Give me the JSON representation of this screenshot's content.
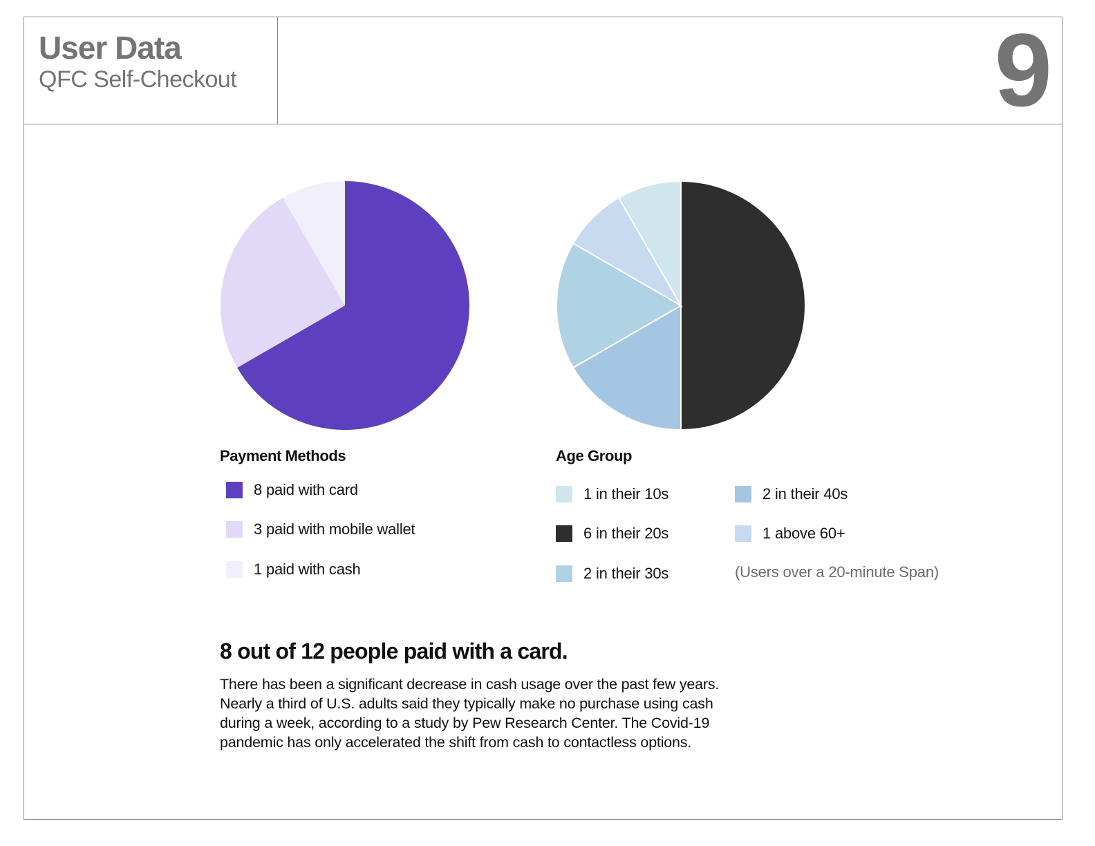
{
  "header": {
    "title": "User Data",
    "subtitle": "QFC Self-Checkout",
    "page_number": "9"
  },
  "chart_data": [
    {
      "type": "pie",
      "title": "Payment Methods",
      "categories": [
        "8 paid with card",
        "3 paid with mobile wallet",
        "1 paid with cash"
      ],
      "values": [
        8,
        3,
        1
      ],
      "colors": [
        "#5e40bf",
        "#e2d9f9",
        "#f2effd"
      ],
      "legend_position": "below"
    },
    {
      "type": "pie",
      "title": "Age Group",
      "categories": [
        "6 in their 20s",
        "2 in their 40s",
        "2 in their 30s",
        "1 above 60+",
        "1 in their 10s"
      ],
      "values": [
        6,
        2,
        2,
        1,
        1
      ],
      "colors": [
        "#2e2e2e",
        "#a5c6e3",
        "#b0d2e5",
        "#c6daf0",
        "#d0e6ef"
      ],
      "legend_position": "below",
      "note": "(Users over a 20-minute Span)"
    }
  ],
  "legends": {
    "payment": [
      {
        "label": "8 paid with card",
        "color": "#5e40bf"
      },
      {
        "label": "3 paid with mobile wallet",
        "color": "#e2d9f9"
      },
      {
        "label": "1 paid with cash",
        "color": "#f2effd"
      }
    ],
    "age": [
      {
        "label": "1 in their 10s",
        "color": "#d0e6ef"
      },
      {
        "label": "6 in their 20s",
        "color": "#2e2e2e"
      },
      {
        "label": "2 in their 30s",
        "color": "#b0d2e5"
      },
      {
        "label": "2 in their 40s",
        "color": "#a5c6e3"
      },
      {
        "label": "1 above 60+",
        "color": "#c6daf0"
      }
    ]
  },
  "summary": {
    "headline": "8 out of 12 people paid with a card.",
    "body": "There has been a significant decrease in cash usage over the past few years. Nearly a third of U.S. adults said they typically make no purchase using cash during a week, according to a study by Pew Research Center. The Covid-19 pandemic has only accelerated the shift from cash to contactless options."
  }
}
